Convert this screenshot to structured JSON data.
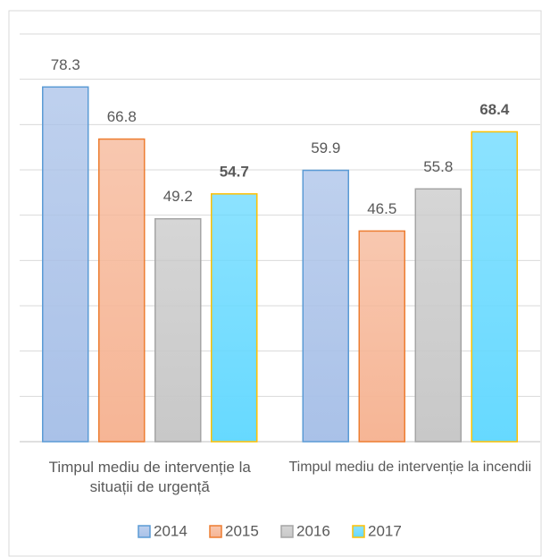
{
  "chart_data": {
    "type": "bar",
    "categories": [
      "Timpul mediu de intervenție la situații de urgență",
      "Timpul mediu de intervenție la incendii"
    ],
    "series": [
      {
        "name": "2014",
        "color": "#a9c1e8",
        "border": "#5b9bd5",
        "values": [
          78.3,
          59.9
        ]
      },
      {
        "name": "2015",
        "color": "#f6b595",
        "border": "#ed7d31",
        "values": [
          66.8,
          46.5
        ]
      },
      {
        "name": "2016",
        "color": "#c8c8c8",
        "border": "#a5a5a5",
        "values": [
          49.2,
          55.8
        ]
      },
      {
        "name": "2017",
        "color": "#66d9ff",
        "border": "#ffc000",
        "values": [
          54.7,
          68.4
        ],
        "label_bold": true
      }
    ],
    "ylim": [
      0,
      90
    ],
    "yticks": [
      0,
      10,
      20,
      30,
      40,
      50,
      60,
      70,
      80,
      90
    ],
    "grid": true,
    "legend": "bottom"
  }
}
